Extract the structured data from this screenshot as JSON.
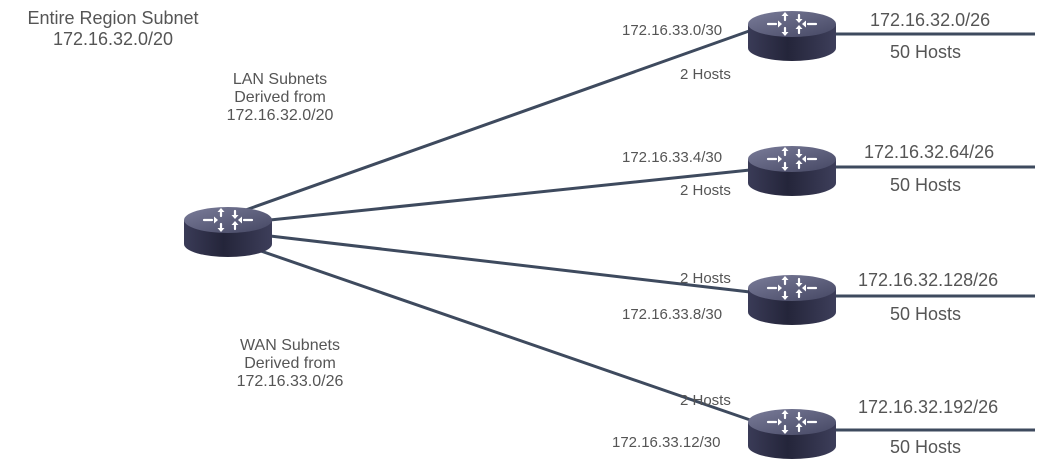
{
  "region": {
    "title": "Entire Region Subnet",
    "subnet": "172.16.32.0/20"
  },
  "lan_note": {
    "line1": "LAN Subnets",
    "line2": "Derived from",
    "line3": "172.16.32.0/20"
  },
  "wan_note": {
    "line1": "WAN Subnets",
    "line2": "Derived from",
    "line3": "172.16.33.0/26"
  },
  "branches": [
    {
      "wan_subnet": "172.16.33.0/30",
      "wan_hosts": "2 Hosts",
      "lan_subnet": "172.16.32.0/26",
      "lan_hosts": "50 Hosts"
    },
    {
      "wan_subnet": "172.16.33.4/30",
      "wan_hosts": "2 Hosts",
      "lan_subnet": "172.16.32.64/26",
      "lan_hosts": "50 Hosts"
    },
    {
      "wan_subnet": "172.16.33.8/30",
      "wan_hosts": "2 Hosts",
      "lan_subnet": "172.16.32.128/26",
      "lan_hosts": "50 Hosts"
    },
    {
      "wan_subnet": "172.16.33.12/30",
      "wan_hosts": "2 Hosts",
      "lan_subnet": "172.16.32.192/26",
      "lan_hosts": "50 Hosts"
    }
  ],
  "colors": {
    "link": "#3e4a5e",
    "router_top": "#5a5c79",
    "router_side": "#2c2d45",
    "router_arrows": "#ffffff",
    "text": "#555555"
  },
  "icons": {
    "router": "router-icon"
  }
}
